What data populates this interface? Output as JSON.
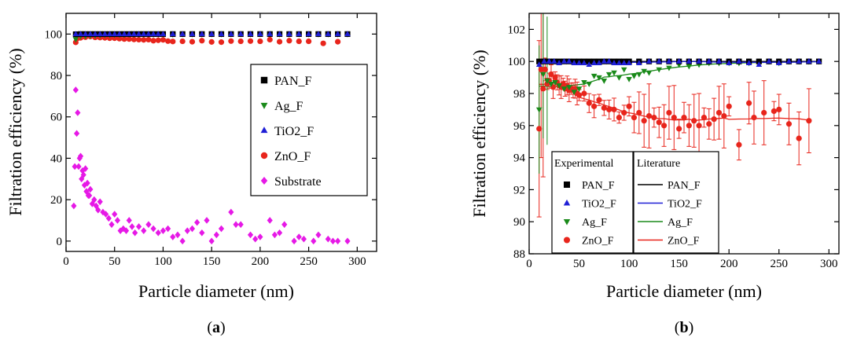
{
  "chart_data": [
    {
      "id": "a",
      "type": "scatter",
      "caption": "a",
      "xlabel": "Particle diameter (nm)",
      "ylabel": "Filtration efficiency (%)",
      "xlim": [
        0,
        320
      ],
      "ylim": [
        -5,
        110
      ],
      "xticks": [
        0,
        50,
        100,
        150,
        200,
        250,
        300
      ],
      "yticks": [
        0,
        20,
        40,
        60,
        80,
        100
      ],
      "grid": false,
      "legend_placement": "right",
      "series": [
        {
          "name": "PAN_F",
          "color": "#000000",
          "marker": "square",
          "x": [
            10,
            15,
            20,
            25,
            30,
            35,
            40,
            45,
            50,
            55,
            60,
            65,
            70,
            75,
            80,
            85,
            90,
            95,
            100,
            110,
            120,
            130,
            140,
            150,
            160,
            170,
            180,
            190,
            200,
            210,
            220,
            230,
            240,
            250,
            260,
            270,
            280,
            290
          ],
          "y": [
            99.9,
            100,
            100,
            100,
            100,
            100,
            100,
            100,
            100,
            100,
            100,
            100,
            100,
            100,
            100,
            100,
            100,
            100,
            100,
            100,
            100,
            100,
            100,
            100,
            100,
            100,
            100,
            100,
            100,
            100,
            100,
            100,
            100,
            100,
            100,
            100,
            100,
            100
          ]
        },
        {
          "name": "Ag_F",
          "color": "#1a8a1a",
          "marker": "triangle-down",
          "x": [
            10,
            15,
            20,
            25,
            30,
            35,
            40,
            45,
            50,
            55,
            60,
            65,
            70,
            75,
            80,
            85,
            90,
            95,
            100,
            110,
            120,
            130,
            140,
            150,
            160,
            170,
            180,
            190,
            200,
            210,
            220,
            230,
            240,
            250,
            260,
            270,
            280,
            290
          ],
          "y": [
            97.5,
            99,
            99,
            99.2,
            99.3,
            99.4,
            99.5,
            99.5,
            99.6,
            99.6,
            99.6,
            99.7,
            99.7,
            99.7,
            99.7,
            99.8,
            99.8,
            99.8,
            99.8,
            99.8,
            99.9,
            99.9,
            99.9,
            99.9,
            99.9,
            99.9,
            99.9,
            99.9,
            99.9,
            99.9,
            99.9,
            99.9,
            99.9,
            99.9,
            99.9,
            99.9,
            99.9,
            99.9
          ]
        },
        {
          "name": "TiO2_F",
          "color": "#1f1fd6",
          "marker": "triangle-up",
          "x": [
            10,
            15,
            20,
            25,
            30,
            35,
            40,
            45,
            50,
            55,
            60,
            65,
            70,
            75,
            80,
            85,
            90,
            95,
            100,
            110,
            120,
            130,
            140,
            150,
            160,
            170,
            180,
            190,
            200,
            210,
            220,
            230,
            240,
            250,
            260,
            270,
            280,
            290
          ],
          "y": [
            100,
            100,
            100,
            100,
            100,
            100,
            100,
            100,
            100,
            100,
            100,
            100,
            100,
            100,
            100,
            100,
            100,
            100,
            100,
            100,
            100,
            100,
            100,
            100,
            100,
            100,
            100,
            100,
            100,
            100,
            100,
            100,
            100,
            100,
            100,
            100,
            100,
            100
          ]
        },
        {
          "name": "ZnO_F",
          "color": "#e8251c",
          "marker": "circle",
          "x": [
            10,
            12,
            15,
            18,
            20,
            25,
            30,
            35,
            40,
            45,
            50,
            55,
            60,
            65,
            70,
            75,
            80,
            85,
            90,
            95,
            100,
            105,
            110,
            120,
            130,
            140,
            150,
            160,
            170,
            180,
            190,
            200,
            210,
            220,
            230,
            240,
            250,
            265,
            280
          ],
          "y": [
            96,
            98,
            98.2,
            99,
            98.5,
            98.8,
            98.4,
            98.3,
            98.2,
            98,
            98,
            97.8,
            97.6,
            97.6,
            97.4,
            97.3,
            97.2,
            97.3,
            96.8,
            97,
            97.2,
            96.6,
            96.4,
            96.5,
            96.3,
            96.8,
            96.2,
            96.1,
            96.6,
            96.5,
            96.6,
            96.5,
            97.3,
            96.3,
            96.8,
            96.5,
            96.5,
            95.5,
            96.3
          ]
        },
        {
          "name": "Substrate",
          "color": "#e619e6",
          "marker": "diamond",
          "x": [
            8,
            9,
            10,
            11,
            12,
            13,
            14,
            15,
            16,
            17,
            18,
            19,
            20,
            21,
            22,
            23,
            24,
            25,
            27,
            29,
            31,
            33,
            35,
            38,
            41,
            44,
            47,
            50,
            53,
            56,
            59,
            62,
            65,
            68,
            71,
            75,
            80,
            85,
            90,
            95,
            100,
            105,
            110,
            115,
            120,
            125,
            130,
            135,
            140,
            145,
            150,
            155,
            160,
            170,
            175,
            180,
            190,
            195,
            200,
            210,
            215,
            220,
            225,
            235,
            240,
            245,
            255,
            260,
            270,
            275,
            280,
            290
          ],
          "y": [
            17,
            36,
            73,
            52,
            62,
            36,
            40,
            41,
            30,
            34,
            32,
            27,
            35,
            24,
            28,
            22,
            22,
            25,
            18,
            20,
            17,
            15,
            19,
            14,
            13,
            11,
            8,
            13,
            10,
            5,
            6,
            5,
            10,
            7,
            4,
            7,
            5,
            8,
            6,
            4,
            5,
            6,
            2,
            3,
            0,
            5,
            6,
            9,
            4,
            10,
            0,
            3,
            6,
            14,
            8,
            8,
            3,
            1,
            2,
            10,
            3,
            4,
            8,
            0,
            2,
            1,
            0,
            3,
            1,
            0,
            0,
            0
          ]
        }
      ]
    },
    {
      "id": "b",
      "type": "scatter",
      "caption": "b",
      "xlabel": "Particle diameter (nm)",
      "ylabel": "Filtration efficiency (%)",
      "xlim": [
        0,
        310
      ],
      "ylim": [
        88,
        103
      ],
      "xticks": [
        0,
        50,
        100,
        150,
        200,
        250,
        300
      ],
      "yticks": [
        88,
        90,
        92,
        94,
        96,
        98,
        100,
        102
      ],
      "grid": false,
      "legend_placement": "bottom-left",
      "legend_groups": [
        "Experimental",
        "Literature"
      ],
      "series": [
        {
          "name": "PAN_F",
          "color": "#000000",
          "marker": "square",
          "x": [
            10,
            15,
            20,
            25,
            30,
            35,
            40,
            45,
            50,
            55,
            60,
            65,
            70,
            75,
            80,
            85,
            90,
            95,
            100,
            110,
            120,
            130,
            140,
            150,
            160,
            170,
            180,
            190,
            200,
            210,
            220,
            230,
            240,
            250,
            260,
            270,
            280,
            290
          ],
          "y": [
            100,
            100,
            100,
            100,
            100,
            100,
            100,
            100,
            100,
            100,
            100,
            100,
            100,
            100,
            100,
            100,
            100,
            100,
            100,
            100,
            100,
            100,
            100,
            100,
            100,
            100,
            100,
            100,
            100,
            100,
            100,
            100,
            100,
            100,
            100,
            100,
            100,
            100
          ]
        },
        {
          "name": "TiO2_F",
          "color": "#1f1fd6",
          "marker": "triangle-up",
          "x": [
            10,
            15,
            20,
            25,
            30,
            35,
            40,
            45,
            50,
            55,
            60,
            65,
            70,
            75,
            80,
            85,
            90,
            95,
            100,
            110,
            120,
            130,
            140,
            150,
            160,
            170,
            180,
            190,
            200,
            210,
            220,
            230,
            240,
            250,
            260,
            270,
            280,
            290
          ],
          "y": [
            99.8,
            100,
            100,
            100,
            99.9,
            100,
            100,
            99.9,
            99.9,
            99.9,
            99.8,
            99.9,
            99.9,
            100,
            100,
            99.9,
            99.9,
            99.9,
            99.9,
            99.9,
            100,
            100,
            100,
            100,
            100,
            100,
            100,
            100,
            99.9,
            100,
            99.9,
            99.8,
            100,
            99.9,
            100,
            100,
            100,
            100
          ]
        },
        {
          "name": "Ag_F",
          "color": "#1a8a1a",
          "marker": "triangle-down",
          "x": [
            10,
            14,
            18,
            22,
            26,
            30,
            35,
            40,
            45,
            50,
            55,
            60,
            65,
            70,
            75,
            80,
            85,
            90,
            95,
            100,
            105,
            110,
            115,
            120,
            130,
            140,
            150,
            160,
            170,
            180,
            190,
            200,
            210,
            220,
            230,
            240,
            250,
            260,
            270,
            280,
            290
          ],
          "y": [
            97,
            99.2,
            98.8,
            98.6,
            98.7,
            98.5,
            98.3,
            98.4,
            98.1,
            98.3,
            98.7,
            98.6,
            99.1,
            99,
            98.8,
            99.2,
            99.3,
            99,
            99.5,
            98.9,
            99.1,
            99.2,
            99.4,
            99.3,
            99.5,
            99.6,
            99.8,
            99.7,
            99.8,
            99.9,
            99.9,
            99.9,
            99.9,
            99.9,
            99.9,
            100,
            99.9,
            100,
            100,
            100,
            100
          ]
        },
        {
          "name": "ZnO_F",
          "color": "#e8251c",
          "marker": "circle",
          "x": [
            10,
            12,
            14,
            16,
            18,
            20,
            22,
            24,
            26,
            28,
            30,
            32,
            34,
            36,
            38,
            40,
            42,
            44,
            46,
            48,
            50,
            55,
            60,
            65,
            70,
            75,
            80,
            85,
            90,
            95,
            100,
            105,
            110,
            115,
            120,
            125,
            130,
            135,
            140,
            145,
            150,
            155,
            160,
            165,
            170,
            175,
            180,
            185,
            190,
            195,
            200,
            210,
            220,
            225,
            235,
            245,
            250,
            260,
            270,
            280
          ],
          "y": [
            95.8,
            99.5,
            98.3,
            99.5,
            98.6,
            98.8,
            99.2,
            98.4,
            99,
            98.7,
            98.5,
            98.4,
            98.6,
            98.3,
            98.5,
            98.2,
            98.3,
            98.2,
            98.3,
            98,
            97.9,
            98,
            97.4,
            97.2,
            97.6,
            97.1,
            97,
            97,
            96.5,
            96.8,
            97.2,
            96.5,
            96.8,
            96.3,
            96.6,
            96.5,
            96.2,
            96,
            96.8,
            96.5,
            95.8,
            96.5,
            96,
            96.3,
            96,
            96.5,
            96.1,
            96.4,
            96.8,
            96.6,
            97.2,
            94.8,
            97.4,
            96.5,
            96.8,
            96.9,
            97,
            96.1,
            95.2,
            96.3
          ]
        }
      ]
    }
  ]
}
